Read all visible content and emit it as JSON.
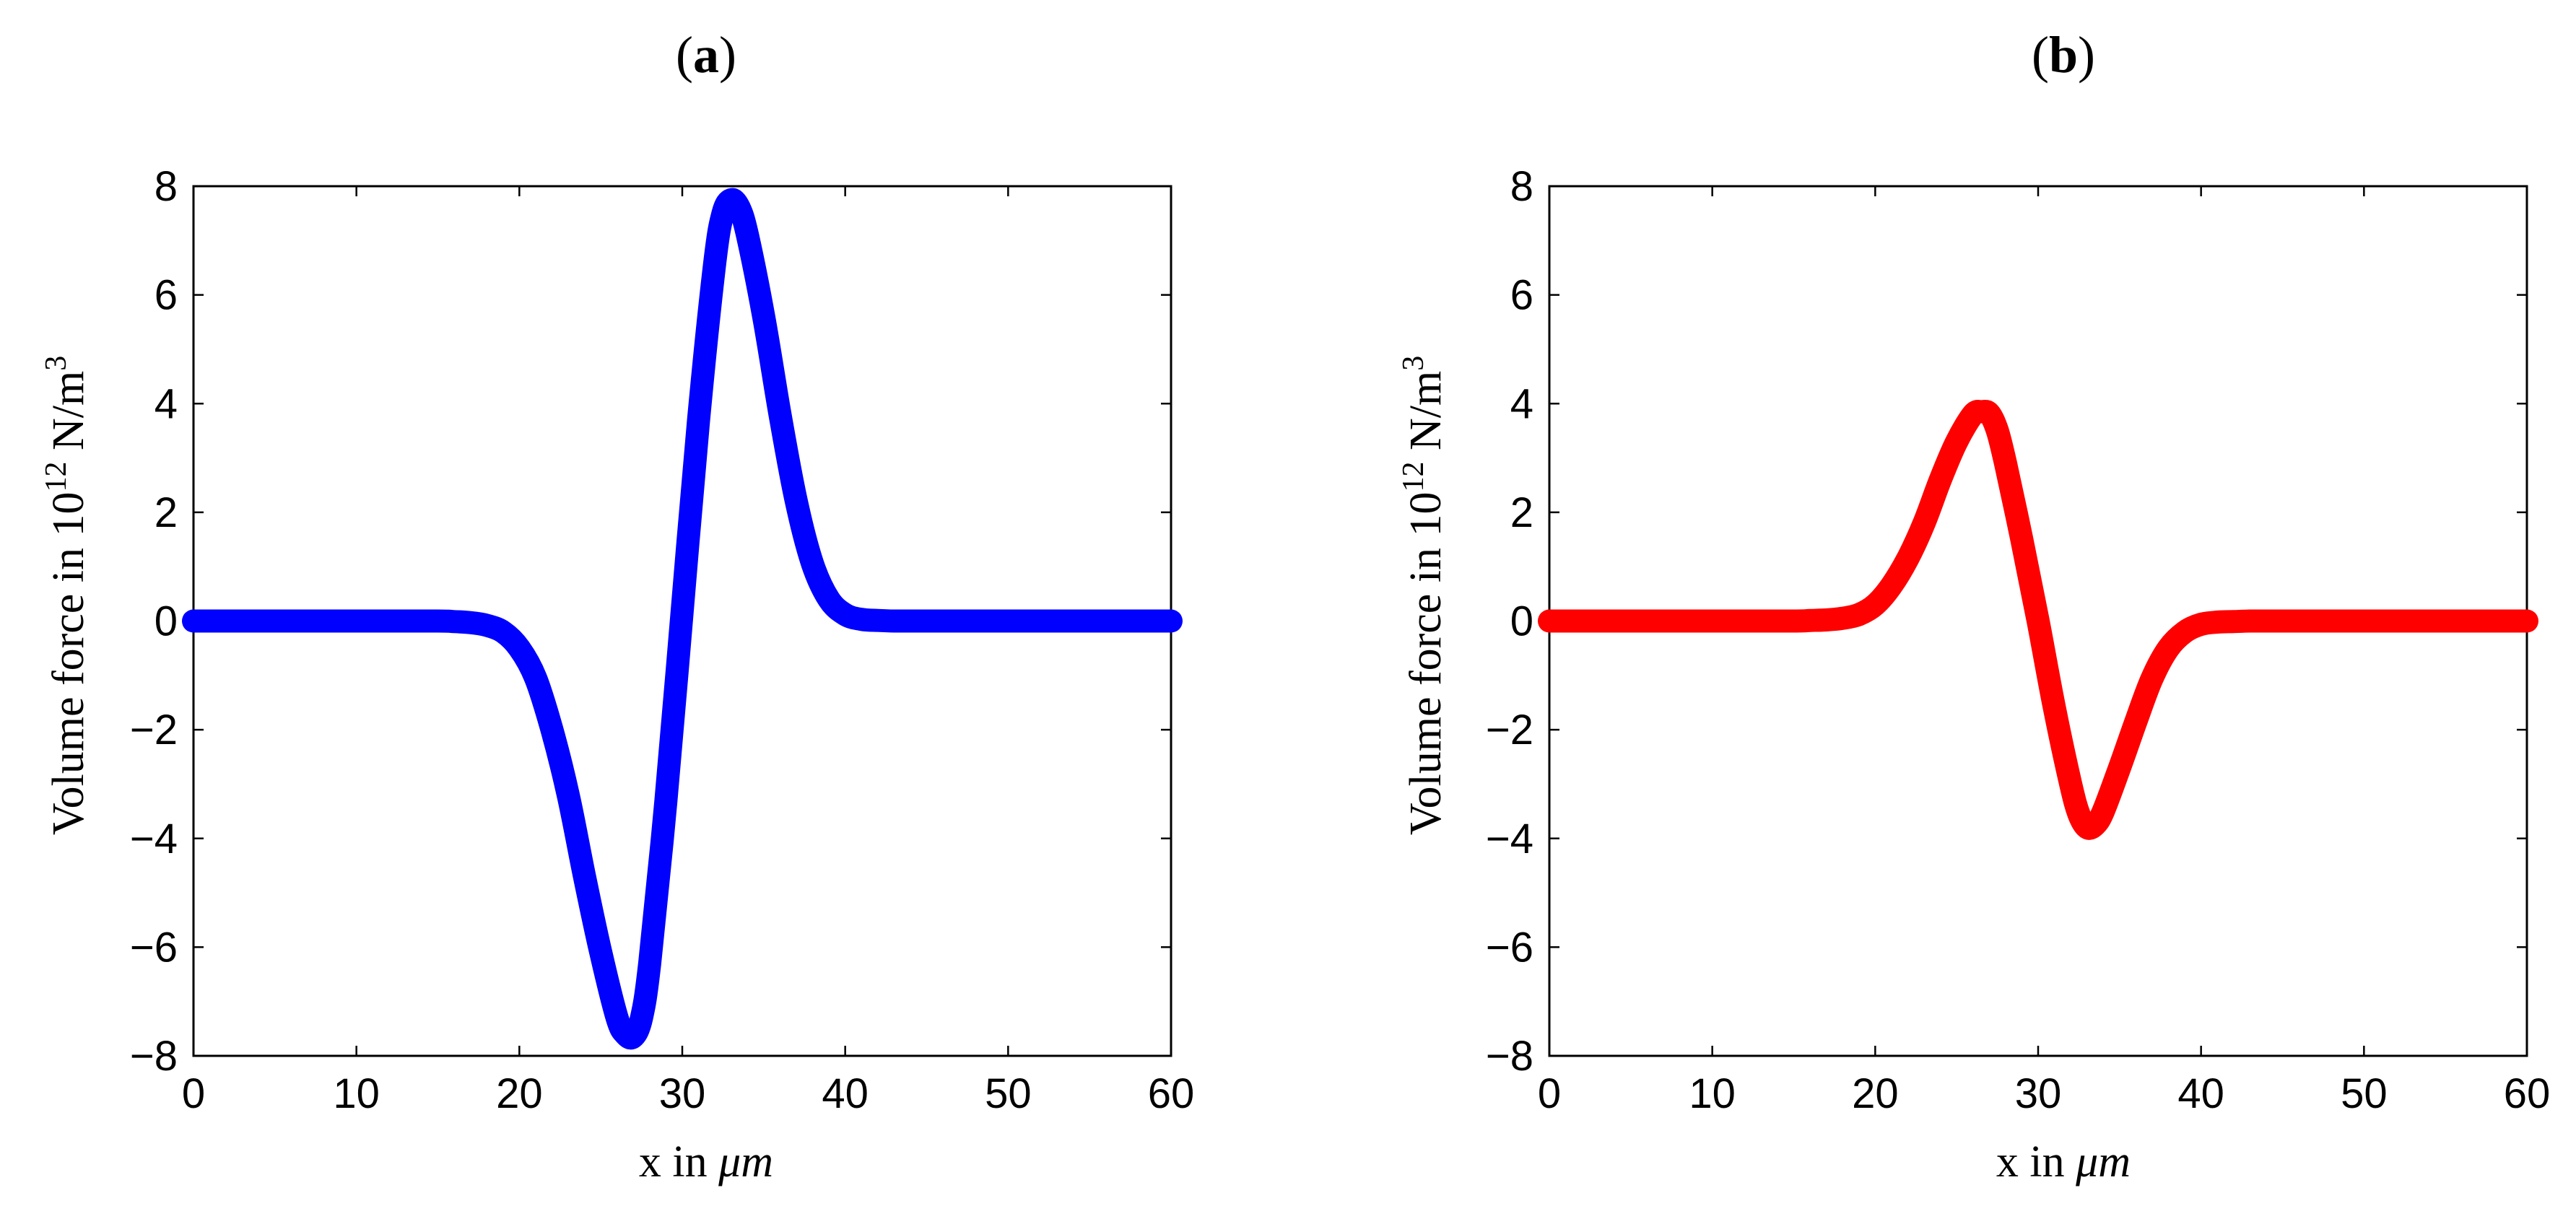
{
  "colors": {
    "background": "#ffffff",
    "axis": "#000000",
    "blue_series": "#0000ff",
    "red_series": "#ff0000"
  },
  "chart_data": [
    {
      "panel_label": "(a)",
      "panel_letter": "a",
      "type": "line",
      "xlabel_prefix": "x in ",
      "xlabel_unit": "μm",
      "ylabel_prefix": "Volume force in 10",
      "ylabel_exp": "12",
      "ylabel_unit": " N/m",
      "ylabel_unit_exp": "3",
      "xlim": [
        0,
        60
      ],
      "ylim": [
        -8,
        8
      ],
      "xticks": [
        0,
        10,
        20,
        30,
        40,
        50,
        60
      ],
      "yticks": [
        -8,
        -6,
        -4,
        -2,
        0,
        2,
        4,
        6,
        8
      ],
      "xtick_labels": [
        "0",
        "10",
        "20",
        "30",
        "40",
        "50",
        "60"
      ],
      "ytick_labels": [
        "−8",
        "−6",
        "−4",
        "−2",
        "0",
        "2",
        "4",
        "6",
        "8"
      ],
      "grid": false,
      "series": [
        {
          "name": "volume-force-a",
          "color": "#0000ff",
          "x": [
            0,
            5,
            10,
            15,
            16,
            17,
            18,
            19,
            20,
            21,
            22,
            23,
            24,
            25,
            26,
            26.5,
            27,
            27.5,
            28,
            29,
            30,
            31,
            32,
            32.5,
            33,
            33.5,
            34,
            35,
            36,
            37,
            38,
            39,
            40,
            41,
            42,
            43,
            44,
            45,
            50,
            55,
            60
          ],
          "values": [
            0,
            0,
            0,
            0,
            -0.01,
            -0.03,
            -0.08,
            -0.2,
            -0.5,
            -1.05,
            -2.0,
            -3.2,
            -4.7,
            -6.1,
            -7.3,
            -7.6,
            -7.65,
            -7.3,
            -6.3,
            -3.3,
            0.2,
            3.7,
            6.6,
            7.5,
            7.75,
            7.6,
            7.1,
            5.6,
            3.8,
            2.2,
            1.05,
            0.4,
            0.12,
            0.03,
            0.01,
            0,
            0,
            0,
            0,
            0,
            0
          ]
        }
      ]
    },
    {
      "panel_label": "(b)",
      "panel_letter": "b",
      "type": "line",
      "xlabel_prefix": "x in ",
      "xlabel_unit": "μm",
      "ylabel_prefix": "Volume force in 10",
      "ylabel_exp": "12",
      "ylabel_unit": " N/m",
      "ylabel_unit_exp": "3",
      "xlim": [
        0,
        60
      ],
      "ylim": [
        -8,
        8
      ],
      "xticks": [
        0,
        10,
        20,
        30,
        40,
        50,
        60
      ],
      "yticks": [
        -8,
        -6,
        -4,
        -2,
        0,
        2,
        4,
        6,
        8
      ],
      "xtick_labels": [
        "0",
        "10",
        "20",
        "30",
        "40",
        "50",
        "60"
      ],
      "ytick_labels": [
        "−8",
        "−6",
        "−4",
        "−2",
        "0",
        "2",
        "4",
        "6",
        "8"
      ],
      "grid": false,
      "series": [
        {
          "name": "volume-force-b",
          "color": "#ff0000",
          "x": [
            0,
            5,
            10,
            15,
            16,
            17,
            18,
            19,
            20,
            21,
            22,
            23,
            24,
            25,
            26,
            26.5,
            27,
            27.5,
            28,
            29,
            30,
            31,
            32,
            32.5,
            33,
            33.5,
            34,
            35,
            36,
            37,
            38,
            39,
            40,
            41,
            42,
            43,
            44,
            45,
            50,
            55,
            60
          ],
          "values": [
            0,
            0,
            0,
            0,
            0.01,
            0.02,
            0.05,
            0.12,
            0.3,
            0.65,
            1.15,
            1.8,
            2.6,
            3.3,
            3.8,
            3.85,
            3.82,
            3.5,
            2.9,
            1.5,
            0,
            -1.6,
            -3.0,
            -3.55,
            -3.8,
            -3.75,
            -3.5,
            -2.7,
            -1.85,
            -1.05,
            -0.5,
            -0.2,
            -0.06,
            -0.02,
            -0.01,
            0,
            0,
            0,
            0,
            0,
            0
          ]
        }
      ]
    }
  ]
}
